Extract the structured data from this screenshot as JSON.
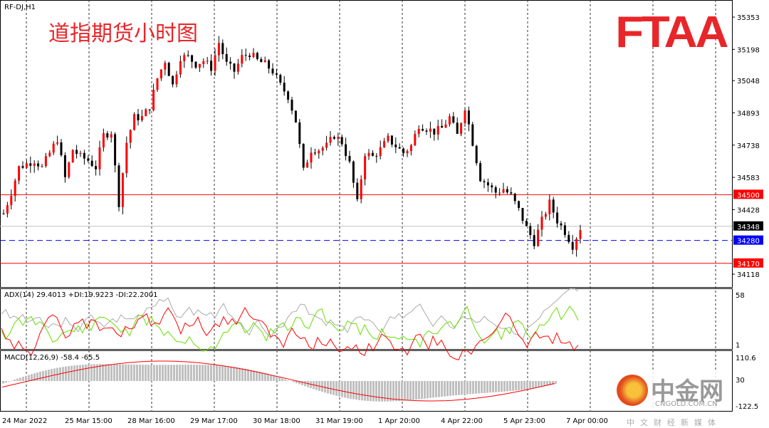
{
  "header": {
    "symbol": "RF-DJ,H1",
    "title": "道指期货小时图",
    "logo": "FTAA"
  },
  "chart_data": {
    "type": "candlestick",
    "price_axis": {
      "ticks": [
        35353,
        35198,
        35048,
        34893,
        34738,
        34583,
        34428,
        34118
      ],
      "range": [
        34060,
        35420
      ]
    },
    "time_labels": [
      "24 Mar 2022",
      "25 Mar 15:00",
      "28 Mar 16:00",
      "29 Mar 17:00",
      "30 Mar 18:00",
      "31 Mar 19:00",
      "1 Apr 20:00",
      "4 Apr 22:00",
      "5 Apr 23:00",
      "7 Apr 00:00"
    ],
    "closes": [
      34409,
      34511,
      34631,
      34648,
      34665,
      34631,
      34700,
      34768,
      34580,
      34717,
      34682,
      34665,
      34631,
      34785,
      34802,
      34460,
      34751,
      34871,
      34871,
      34922,
      35059,
      35144,
      35025,
      35161,
      35161,
      35127,
      35144,
      35110,
      35230,
      35127,
      35093,
      35161,
      35179,
      35144,
      35127,
      35093,
      35025,
      34973,
      34854,
      34614,
      34717,
      34717,
      34734,
      34785,
      34751,
      34648,
      34460,
      34700,
      34682,
      34717,
      34768,
      34734,
      34700,
      34734,
      34836,
      34819,
      34802,
      34819,
      34871,
      34785,
      34922,
      34751,
      34580,
      34546,
      34511,
      34528,
      34494,
      34426,
      34340,
      34272,
      34375,
      34460,
      34375,
      34323,
      34255,
      34340
    ],
    "levels": [
      {
        "price": 34500,
        "color": "#ff0000",
        "style": "solid"
      },
      {
        "price": 34170,
        "color": "#ff0000",
        "style": "solid"
      },
      {
        "price": 34280,
        "color": "#0000ff",
        "style": "dashed"
      },
      {
        "price": 34348,
        "color": "#c0c0c0",
        "style": "solid"
      }
    ],
    "level_tags": [
      {
        "text": "34500",
        "color": "#ff0000"
      },
      {
        "text": "34348",
        "color": "#000000"
      },
      {
        "text": "34280",
        "color": "#0000ff"
      },
      {
        "text": "34170",
        "color": "#ff0000"
      }
    ],
    "adx": {
      "label": "ADX(14) 29.4013 +DI:19.9223 -DI:22.2001",
      "axis": [
        "58",
        "1"
      ]
    },
    "macd": {
      "label": "MACD(12,26,9) -58.4 -65.5",
      "axis": [
        "110.6",
        "30",
        "-122.5"
      ]
    }
  },
  "watermark": {
    "cn": "中金网",
    "en": "CNGOLD.COM.CN",
    "sub": "中文财经新媒体"
  }
}
